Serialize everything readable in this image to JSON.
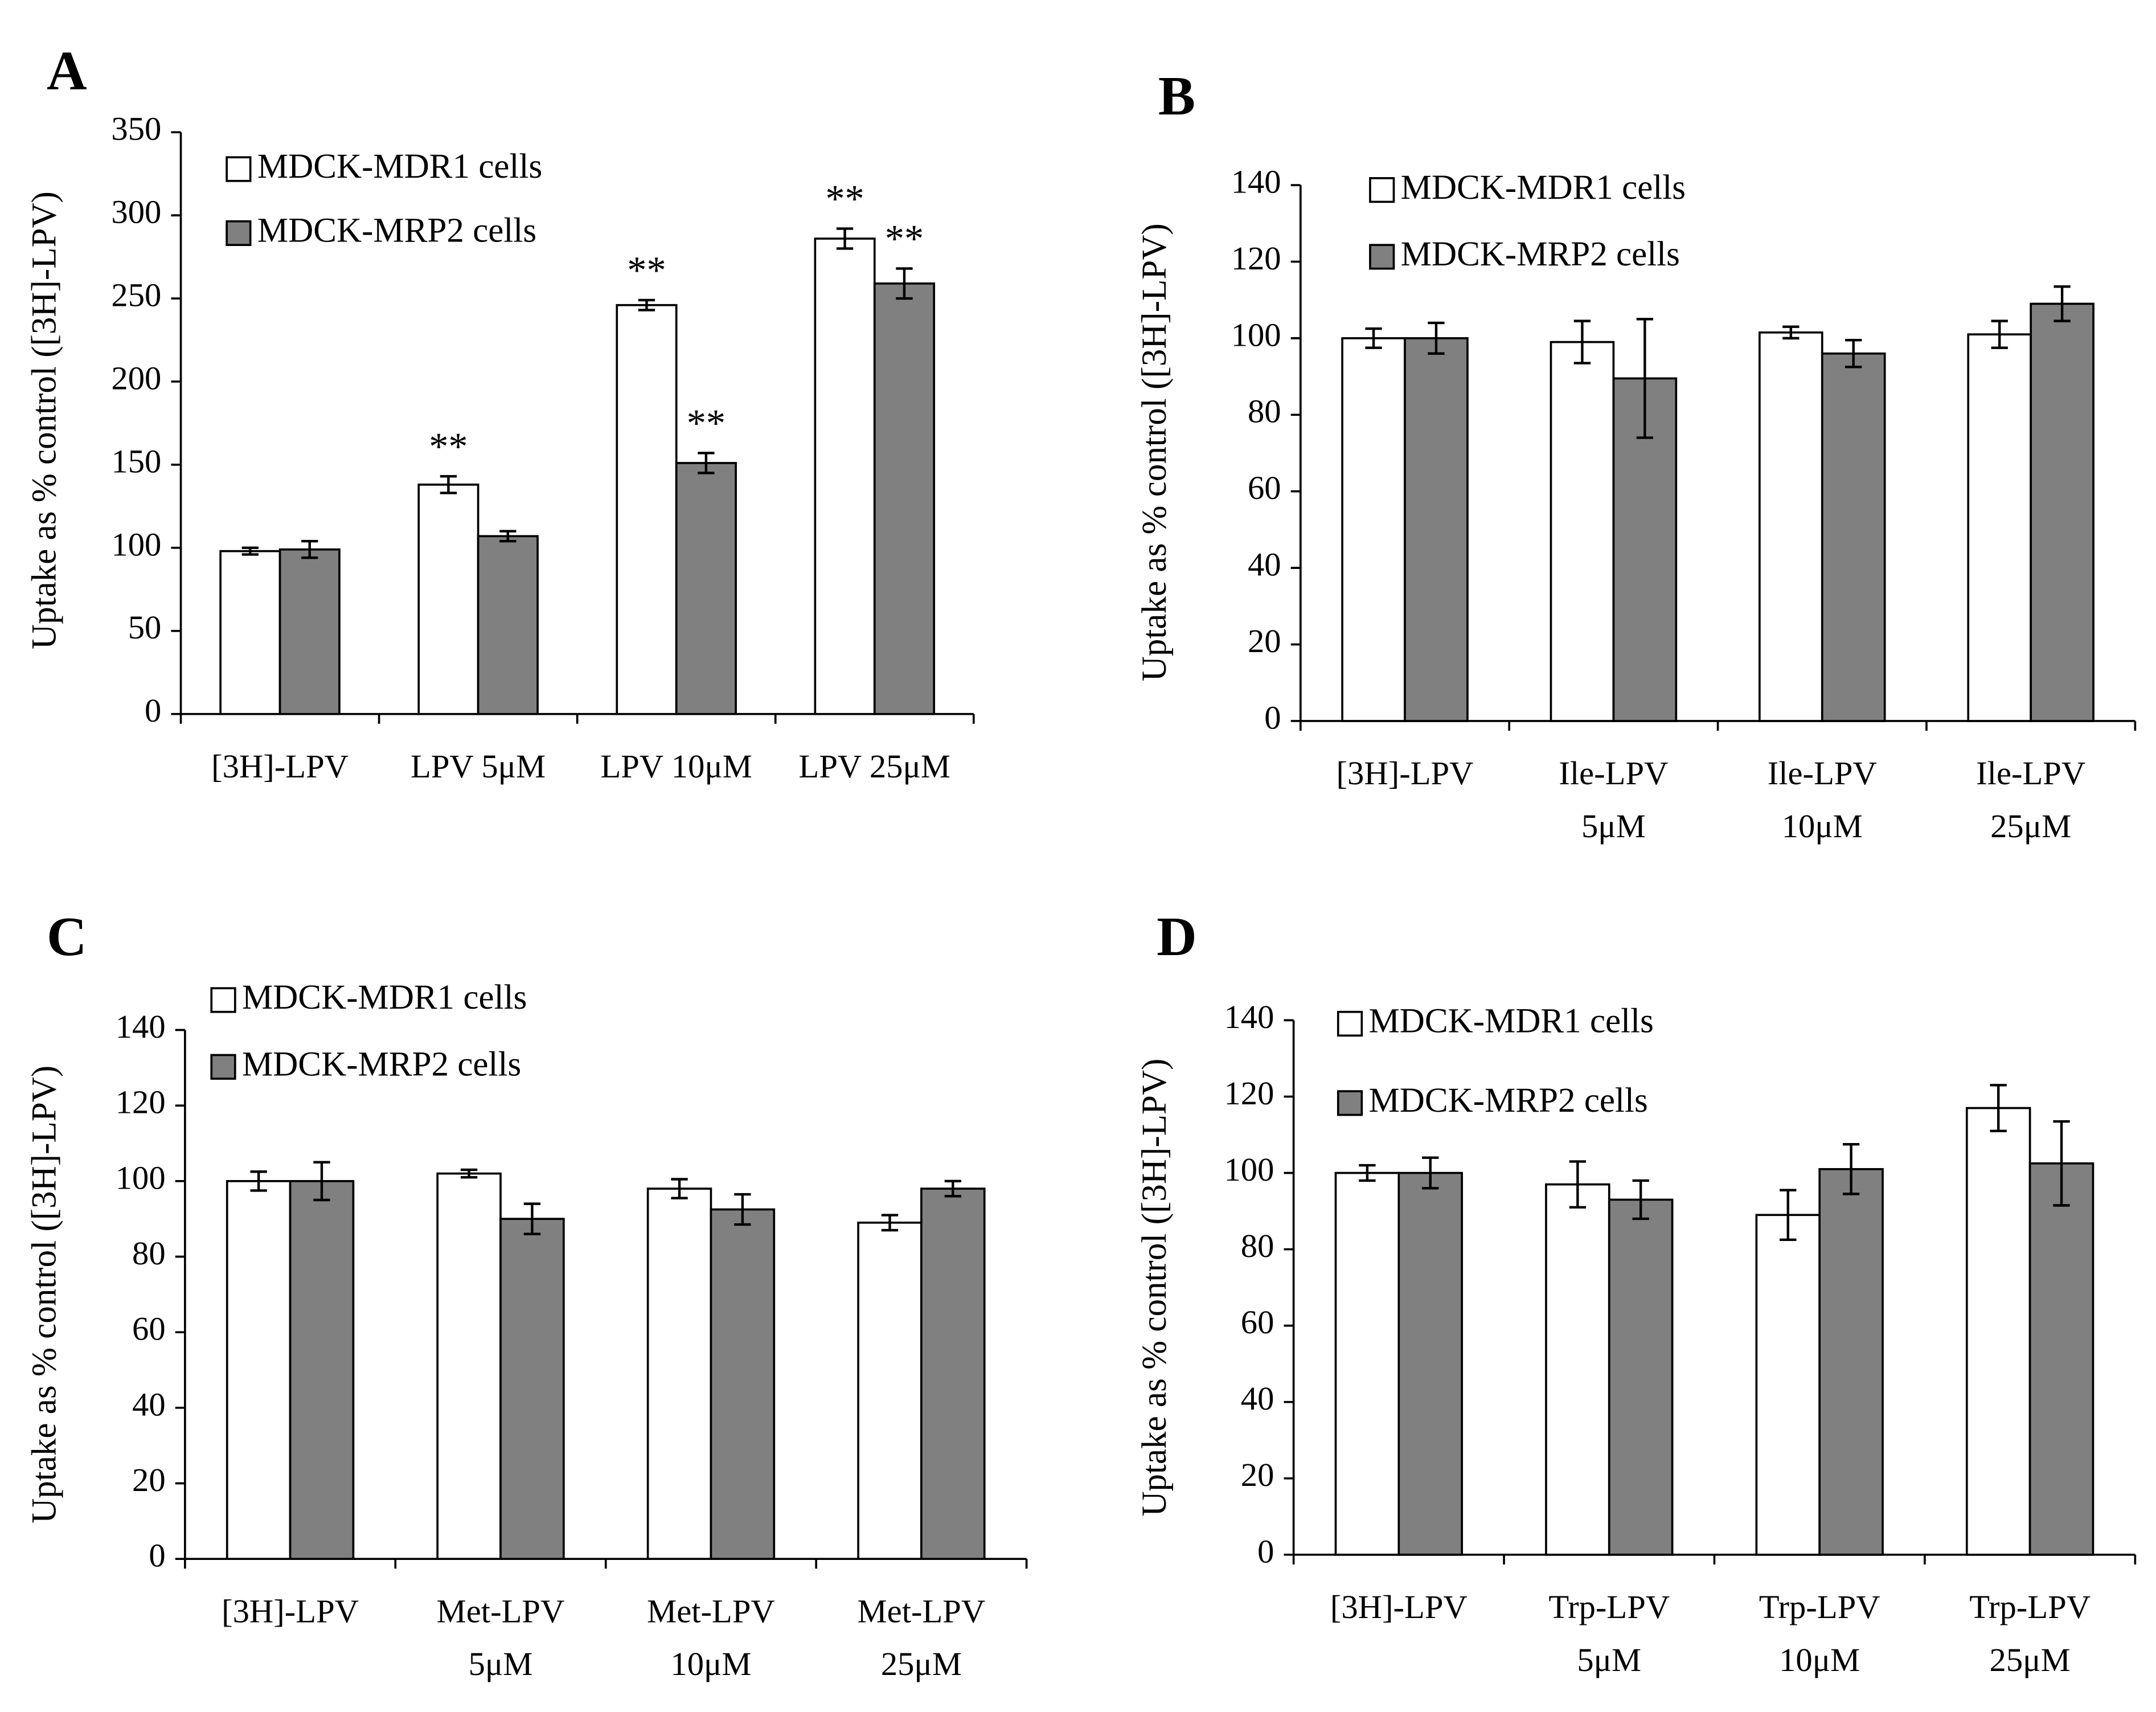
{
  "colors": {
    "series_1_fill": "#ffffff",
    "series_2_fill": "#808080",
    "stroke": "#000000"
  },
  "chart_data": [
    {
      "panel": "A",
      "type": "bar",
      "ylabel": "Uptake as % control ([3H]-LPV)",
      "ylim": [
        0,
        350
      ],
      "yticks": [
        0,
        50,
        100,
        150,
        200,
        250,
        300,
        350
      ],
      "categories": [
        [
          "[3H]-LPV"
        ],
        [
          "LPV 5μM"
        ],
        [
          "LPV 10μM"
        ],
        [
          "LPV 25μM"
        ]
      ],
      "legend_placement": "top-left",
      "series": [
        {
          "name": "MDCK-MDR1 cells",
          "values": [
            98,
            138,
            246,
            286
          ],
          "errors": [
            2,
            5,
            3,
            6
          ],
          "annotations": [
            "",
            "**",
            "**",
            "**"
          ]
        },
        {
          "name": "MDCK-MRP2 cells",
          "values": [
            99,
            107,
            151,
            259
          ],
          "errors": [
            5,
            3,
            6,
            9
          ],
          "annotations": [
            "",
            "",
            "**",
            "**"
          ]
        }
      ]
    },
    {
      "panel": "B",
      "type": "bar",
      "ylabel": "Uptake as % control ([3H]-LPV)",
      "ylim": [
        0,
        140
      ],
      "yticks": [
        0,
        20,
        40,
        60,
        80,
        100,
        120,
        140
      ],
      "categories": [
        [
          "[3H]-LPV"
        ],
        [
          "Ile-LPV",
          "5μM"
        ],
        [
          "Ile-LPV",
          "10μM"
        ],
        [
          "Ile-LPV",
          "25μM"
        ]
      ],
      "legend_placement": "top-left",
      "series": [
        {
          "name": "MDCK-MDR1 cells",
          "values": [
            100,
            99,
            101.5,
            101
          ],
          "errors": [
            2.5,
            5.5,
            1.5,
            3.5
          ],
          "annotations": [
            "",
            "",
            "",
            ""
          ]
        },
        {
          "name": "MDCK-MRP2 cells",
          "values": [
            100,
            89.5,
            96,
            109
          ],
          "errors": [
            4,
            15.5,
            3.5,
            4.5
          ],
          "annotations": [
            "",
            "",
            "",
            ""
          ]
        }
      ]
    },
    {
      "panel": "C",
      "type": "bar",
      "ylabel": "Uptake as % control ([3H]-LPV)",
      "ylim": [
        0,
        140
      ],
      "yticks": [
        0,
        20,
        40,
        60,
        80,
        100,
        120,
        140
      ],
      "categories": [
        [
          "[3H]-LPV"
        ],
        [
          "Met-LPV",
          "5μM"
        ],
        [
          "Met-LPV",
          "10μM"
        ],
        [
          "Met-LPV",
          "25μM"
        ]
      ],
      "legend_placement": "top-left",
      "series": [
        {
          "name": "MDCK-MDR1 cells",
          "values": [
            100,
            102,
            98,
            89
          ],
          "errors": [
            2.5,
            1,
            2.5,
            2
          ],
          "annotations": [
            "",
            "",
            "",
            ""
          ]
        },
        {
          "name": "MDCK-MRP2 cells",
          "values": [
            100,
            90,
            92.5,
            98
          ],
          "errors": [
            5,
            4,
            4,
            2
          ],
          "annotations": [
            "",
            "",
            "",
            ""
          ]
        }
      ]
    },
    {
      "panel": "D",
      "type": "bar",
      "ylabel": "Uptake as % control ([3H]-LPV)",
      "ylim": [
        0,
        140
      ],
      "yticks": [
        0,
        20,
        40,
        60,
        80,
        100,
        120,
        140
      ],
      "categories": [
        [
          "[3H]-LPV"
        ],
        [
          "Trp-LPV",
          "5μM"
        ],
        [
          "Trp-LPV",
          "10μM"
        ],
        [
          "Trp-LPV",
          "25μM"
        ]
      ],
      "legend_placement": "top-left",
      "series": [
        {
          "name": "MDCK-MDR1 cells",
          "values": [
            100,
            97,
            89,
            117
          ],
          "errors": [
            2,
            6,
            6.5,
            6
          ],
          "annotations": [
            "",
            "",
            "",
            ""
          ]
        },
        {
          "name": "MDCK-MRP2 cells",
          "values": [
            100,
            93,
            101,
            102.5
          ],
          "errors": [
            4,
            5,
            6.5,
            11
          ],
          "annotations": [
            "",
            "",
            "",
            ""
          ]
        }
      ]
    }
  ]
}
